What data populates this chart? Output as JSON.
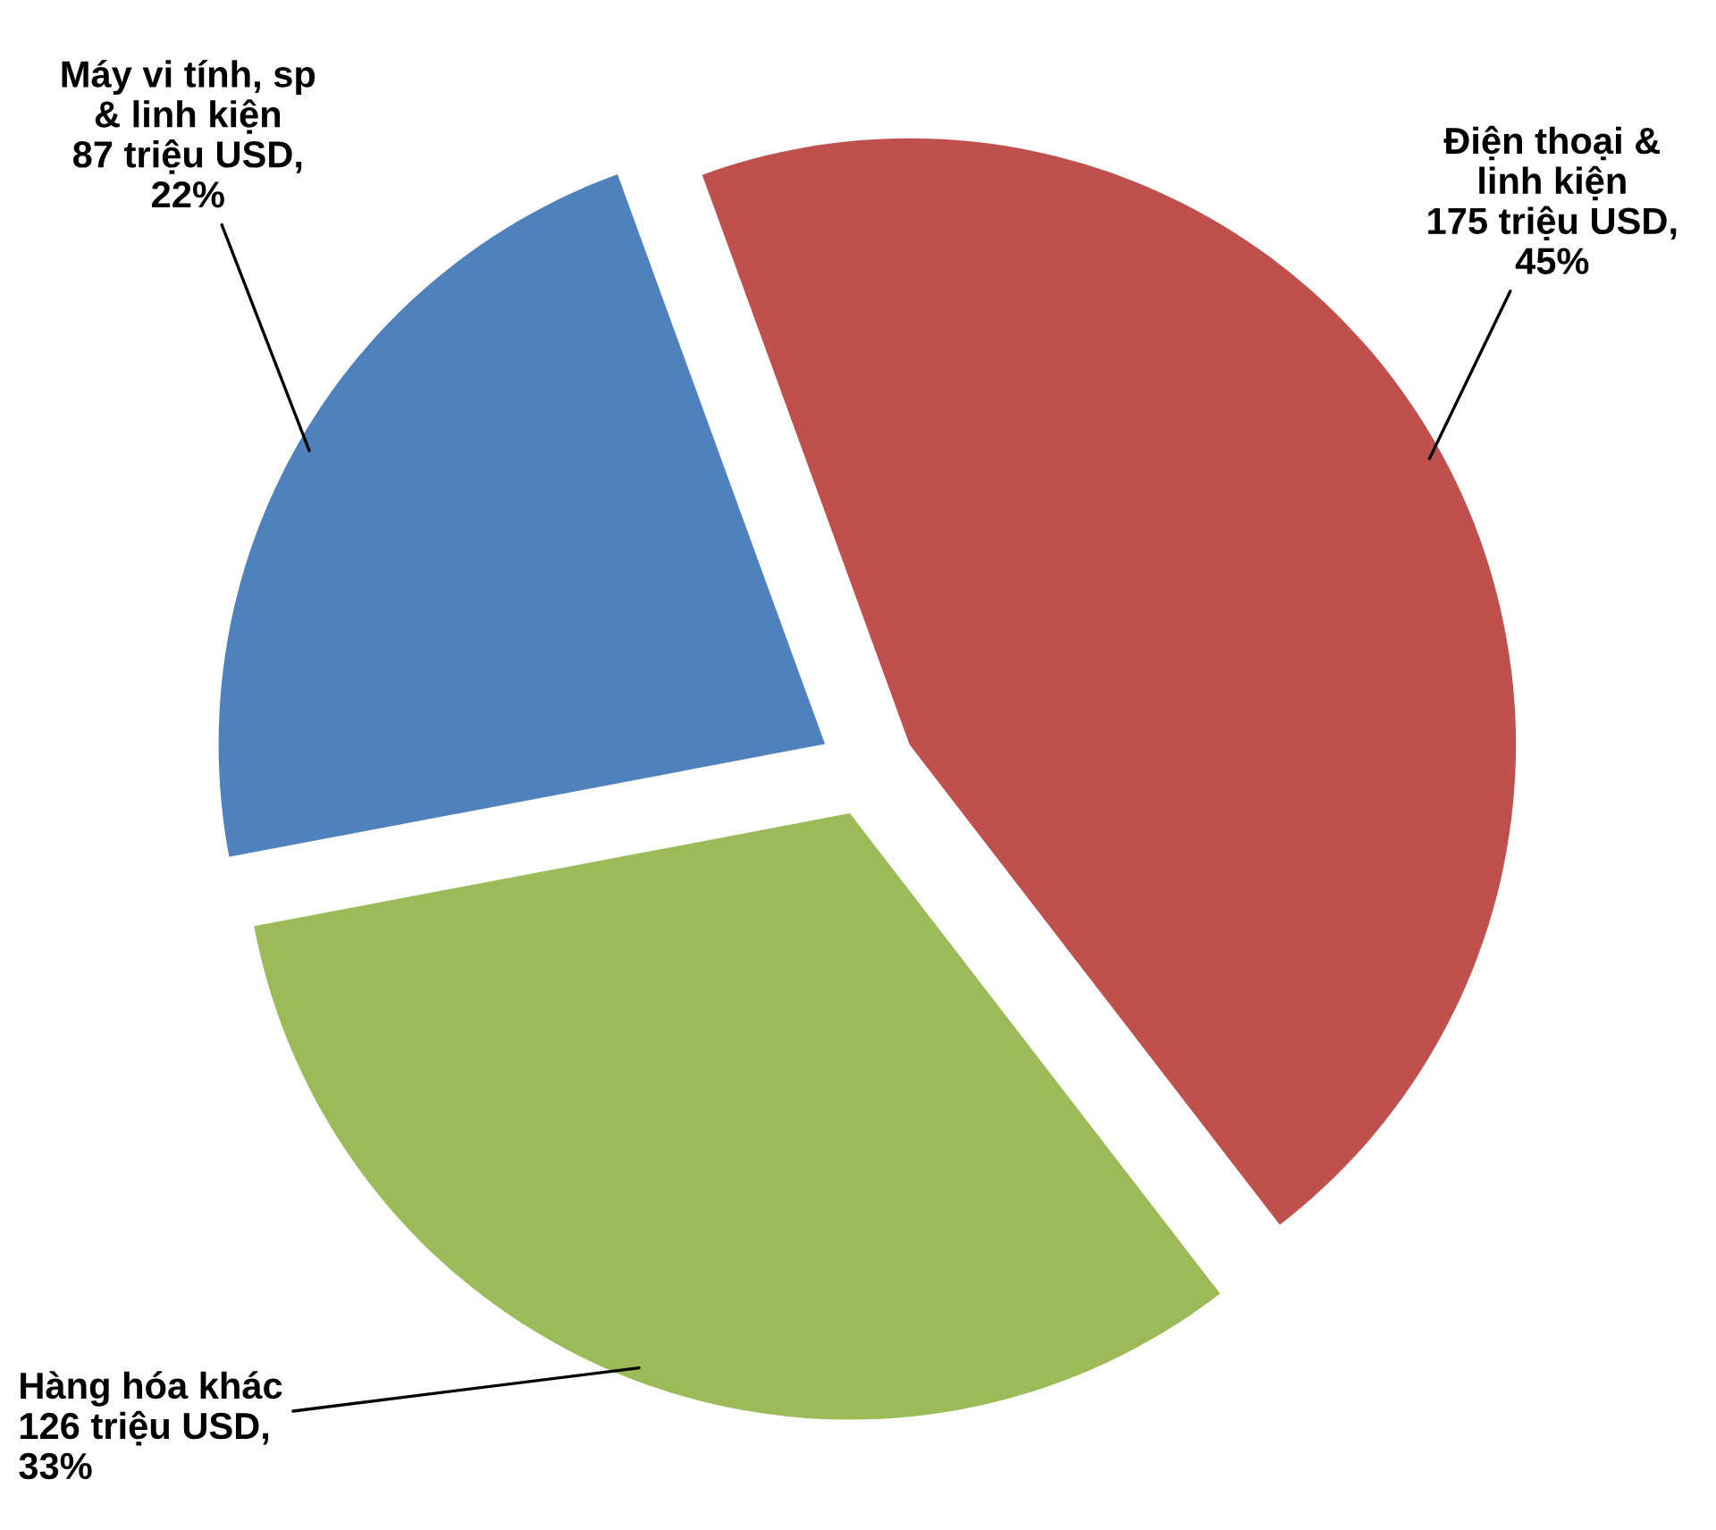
{
  "chart_data": {
    "type": "pie",
    "categories": [
      "Điện thoại &\nlinh kiện",
      "Hàng hóa khác",
      "Máy vi tính, sp\n& linh kiện"
    ],
    "values": [
      175,
      126,
      87
    ],
    "colors": [
      "#c0504d",
      "#9bbb59",
      "#4f81bd"
    ],
    "value_labels": [
      "175 triệu USD,\n45%",
      "126 triệu USD,\n33%",
      "87 triệu USD,\n22%"
    ]
  }
}
